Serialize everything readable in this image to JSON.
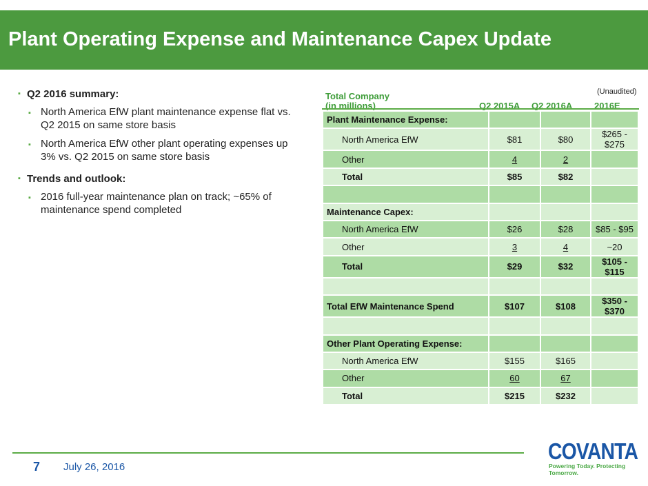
{
  "title": "Plant Operating Expense and Maintenance Capex Update",
  "bullets": [
    {
      "text": "Q2 2016 summary:",
      "sub": [
        "North America EfW plant maintenance expense flat vs. Q2 2015 on same store basis",
        "North America EfW other plant operating expenses up 3% vs. Q2 2015 on same store basis"
      ]
    },
    {
      "text": "Trends and outlook:",
      "sub": [
        "2016 full-year maintenance plan on track; ~65% of maintenance spend completed"
      ]
    }
  ],
  "table": {
    "unaudited": "(Unaudited)",
    "header_line1": "Total Company",
    "header_line2": "(in millions)",
    "columns": [
      "Q2 2015A",
      "Q2 2016A",
      "2016E"
    ],
    "rows": [
      [
        "Plant Maintenance Expense:",
        "",
        "",
        ""
      ],
      [
        "North America EfW",
        "$81",
        "$80",
        "$265 - $275"
      ],
      [
        "Other",
        "4",
        "2",
        ""
      ],
      [
        "Total",
        "$85",
        "$82",
        ""
      ],
      [
        "",
        "",
        "",
        ""
      ],
      [
        "Maintenance Capex:",
        "",
        "",
        ""
      ],
      [
        "North America EfW",
        "$26",
        "$28",
        "$85 - $95"
      ],
      [
        "Other",
        "3",
        "4",
        "~20"
      ],
      [
        "Total",
        "$29",
        "$32",
        "$105 - $115"
      ],
      [
        "",
        "",
        "",
        ""
      ],
      [
        "Total EfW Maintenance Spend",
        "$107",
        "$108",
        "$350 - $370"
      ],
      [
        "",
        "",
        "",
        ""
      ],
      [
        "Other Plant Operating Expense:",
        "",
        "",
        ""
      ],
      [
        "North America EfW",
        "$155",
        "$165",
        ""
      ],
      [
        "Other",
        "60",
        "67",
        ""
      ],
      [
        "Total",
        "$215",
        "$232",
        ""
      ]
    ]
  },
  "footer": {
    "page": "7",
    "date": "July 26, 2016",
    "logo": "COVANTA",
    "tagline": "Powering Today. Protecting Tomorrow."
  },
  "colors": {
    "brand_green": "#4c9a3f",
    "brand_blue": "#1a56a6",
    "row_dark": "#aedca5",
    "row_light": "#d8efd3"
  }
}
